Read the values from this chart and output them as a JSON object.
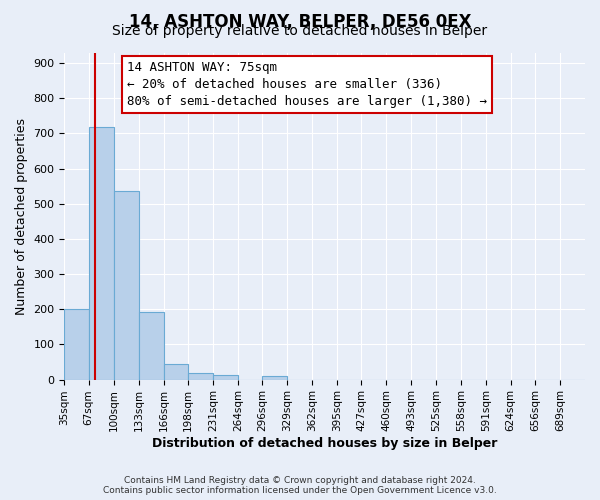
{
  "title": "14, ASHTON WAY, BELPER, DE56 0EX",
  "subtitle": "Size of property relative to detached houses in Belper",
  "xlabel": "Distribution of detached houses by size in Belper",
  "ylabel": "Number of detached properties",
  "bar_labels": [
    "35sqm",
    "67sqm",
    "100sqm",
    "133sqm",
    "166sqm",
    "198sqm",
    "231sqm",
    "264sqm",
    "296sqm",
    "329sqm",
    "362sqm",
    "395sqm",
    "427sqm",
    "460sqm",
    "493sqm",
    "525sqm",
    "558sqm",
    "591sqm",
    "624sqm",
    "656sqm",
    "689sqm"
  ],
  "bar_values": [
    202,
    718,
    536,
    193,
    44,
    20,
    13,
    0,
    10,
    0,
    0,
    0,
    0,
    0,
    0,
    0,
    0,
    0,
    0,
    0,
    0
  ],
  "bar_color": "#b8d0ea",
  "bar_edge_color": "#6aaad4",
  "ylim": [
    0,
    930
  ],
  "yticks": [
    0,
    100,
    200,
    300,
    400,
    500,
    600,
    700,
    800,
    900
  ],
  "property_line_x": 75,
  "property_line_color": "#cc0000",
  "bin_edges": [
    35,
    67,
    100,
    133,
    166,
    198,
    231,
    264,
    296,
    329,
    362,
    395,
    427,
    460,
    493,
    525,
    558,
    591,
    624,
    656,
    689,
    722
  ],
  "annotation_title": "14 ASHTON WAY: 75sqm",
  "annotation_line1": "← 20% of detached houses are smaller (336)",
  "annotation_line2": "80% of semi-detached houses are larger (1,380) →",
  "footnote1": "Contains HM Land Registry data © Crown copyright and database right 2024.",
  "footnote2": "Contains public sector information licensed under the Open Government Licence v3.0.",
  "background_color": "#e8eef8",
  "grid_color": "#ffffff",
  "title_fontsize": 12,
  "subtitle_fontsize": 10,
  "axis_label_fontsize": 9,
  "tick_fontsize": 8,
  "annot_fontsize": 9
}
